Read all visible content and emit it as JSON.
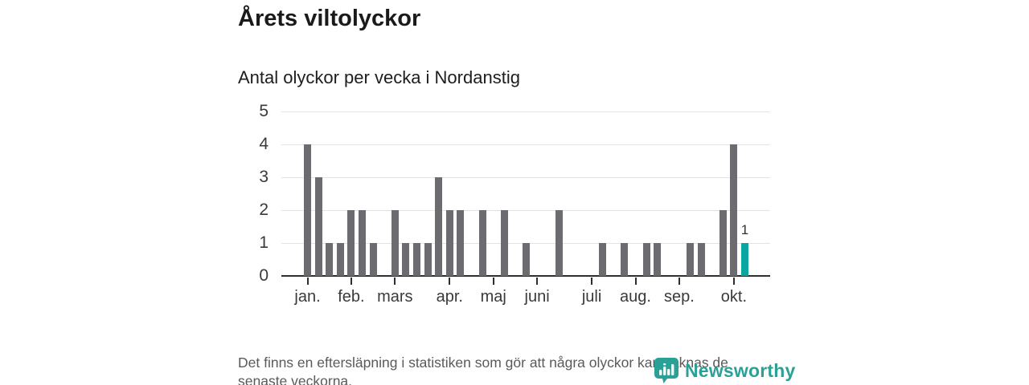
{
  "header": {
    "title": "Årets viltolyckor",
    "subtitle": "Antal olyckor per vecka i Nordanstig"
  },
  "footer": {
    "line1": "Det finns en eftersläpning i statistiken som gör att några olyckor kan saknas de",
    "line2": "senaste veckorna.",
    "logo_text": "Newsworthy"
  },
  "colors": {
    "bar": "#6b6b70",
    "highlight": "#0ba6a0",
    "grid": "#e3e3e3",
    "axis": "#2e2e2e",
    "tick_text": "#3a3a3a",
    "footer_text": "#5a5a5a",
    "logo": "#2aa096"
  },
  "chart_data": {
    "type": "bar",
    "title": "Årets viltolyckor",
    "subtitle": "Antal olyckor per vecka i Nordanstig",
    "x_unit": "vecka (week)",
    "ylabel": "",
    "xlabel": "",
    "ylim": [
      0,
      5
    ],
    "y_tick_labels": [
      "0",
      "1",
      "2",
      "3",
      "4",
      "5"
    ],
    "grid": "horizontal",
    "values": [
      4,
      3,
      1,
      1,
      2,
      2,
      1,
      0,
      2,
      1,
      1,
      1,
      3,
      2,
      2,
      0,
      2,
      0,
      2,
      0,
      1,
      0,
      0,
      2,
      0,
      0,
      0,
      1,
      0,
      1,
      0,
      1,
      1,
      0,
      0,
      1,
      1,
      0,
      2,
      4,
      1
    ],
    "highlight_index": 40,
    "highlight_value_label": "1",
    "x_ticks": [
      {
        "label": "jan.",
        "week_index": 0
      },
      {
        "label": "feb.",
        "week_index": 4
      },
      {
        "label": "mars",
        "week_index": 8
      },
      {
        "label": "apr.",
        "week_index": 13
      },
      {
        "label": "maj",
        "week_index": 17
      },
      {
        "label": "juni",
        "week_index": 21
      },
      {
        "label": "juli",
        "week_index": 26
      },
      {
        "label": "aug.",
        "week_index": 30
      },
      {
        "label": "sep.",
        "week_index": 34
      },
      {
        "label": "okt.",
        "week_index": 39
      }
    ]
  }
}
